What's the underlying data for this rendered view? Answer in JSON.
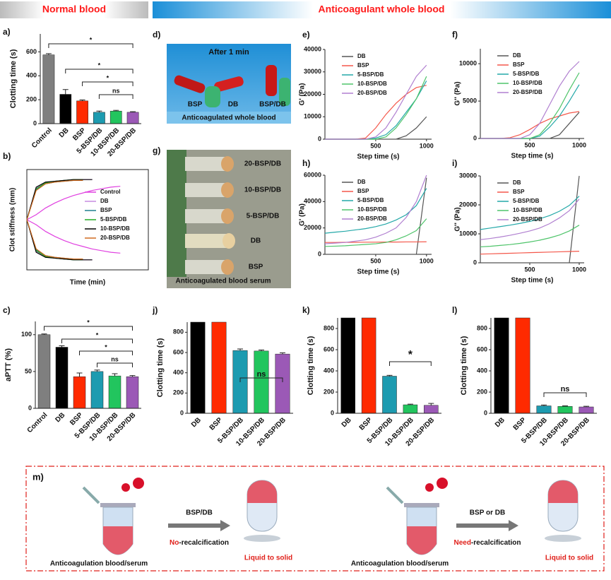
{
  "banner": {
    "left": "Normal blood",
    "right": "Anticoagulant whole blood"
  },
  "chart_data": [
    {
      "type": "bar",
      "label": "a)",
      "ylabel": "Clotting time (s)",
      "categories": [
        "Control",
        "DB",
        "BSP",
        "5-BSP/DB",
        "10-BSP/DB",
        "20-BSP/DB"
      ],
      "values": [
        575,
        245,
        190,
        95,
        105,
        95
      ],
      "errors": [
        10,
        40,
        8,
        10,
        6,
        5
      ],
      "colors": [
        "#7f7f7f",
        "#000000",
        "#ff2a00",
        "#1d9bb0",
        "#22c55e",
        "#9b59b6"
      ],
      "ylim": [
        0,
        750
      ],
      "yticks": [
        0,
        200,
        400,
        600
      ],
      "annotations": [
        "*",
        "*",
        "*",
        "ns"
      ]
    },
    {
      "type": "line",
      "label": "b)",
      "ylabel": "Clot stiffness (mm)",
      "xlabel": "Time (min)",
      "mirrored": true,
      "frame": true,
      "x": [
        0,
        1,
        2,
        3,
        4,
        5,
        6,
        7,
        8,
        9,
        10
      ],
      "xlim": [
        0,
        13
      ],
      "ylim": [
        -60,
        60
      ],
      "series": [
        {
          "name": "Control",
          "color": "#e040e0",
          "values": [
            0,
            6,
            14,
            20,
            25,
            29,
            32,
            35,
            37,
            39,
            40
          ]
        },
        {
          "name": "DB",
          "color": "#c58be0",
          "values": [
            0,
            38,
            44,
            46,
            47,
            47,
            48,
            48,
            null,
            null,
            null
          ]
        },
        {
          "name": "BSP",
          "color": "#1f7f8f",
          "values": [
            0,
            36,
            43,
            45,
            46,
            47,
            47,
            null,
            null,
            null,
            null
          ]
        },
        {
          "name": "5-BSP/DB",
          "color": "#22aa22",
          "values": [
            0,
            37,
            44,
            46,
            47,
            48,
            48,
            null,
            null,
            null,
            null
          ]
        },
        {
          "name": "10-BSP/DB",
          "color": "#000000",
          "values": [
            0,
            39,
            45,
            46,
            47,
            48,
            48,
            48,
            null,
            null,
            null
          ]
        },
        {
          "name": "20-BSP/DB",
          "color": "#d06a20",
          "values": [
            0,
            35,
            43,
            45,
            46,
            47,
            47,
            null,
            null,
            null,
            null
          ]
        }
      ]
    },
    {
      "type": "bar",
      "label": "c)",
      "ylabel": "aPTT (%)",
      "categories": [
        "Control",
        "DB",
        "BSP",
        "5-BSP/DB",
        "10-BSP/DB",
        "20-BSP/DB"
      ],
      "values": [
        100,
        83,
        43,
        50,
        44,
        43
      ],
      "errors": [
        1,
        2,
        5,
        2,
        3,
        1.5
      ],
      "colors": [
        "#7f7f7f",
        "#000000",
        "#ff2a00",
        "#1d9bb0",
        "#22c55e",
        "#9b59b6"
      ],
      "ylim": [
        0,
        118
      ],
      "yticks": [
        0,
        50,
        100
      ],
      "annotations": [
        "*",
        "*",
        "*",
        "ns"
      ]
    },
    {
      "type": "line",
      "label": "e)",
      "ylabel": "G' (Pa)",
      "xlabel": "Step time (s)",
      "x": [
        0,
        100,
        200,
        300,
        400,
        500,
        600,
        700,
        800,
        900,
        1000
      ],
      "xlim": [
        0,
        1050
      ],
      "xticks": [
        500,
        1000
      ],
      "ylim": [
        0,
        40000
      ],
      "yticks": [
        0,
        10000,
        20000,
        30000,
        40000
      ],
      "series": [
        {
          "name": "DB",
          "color": "#555555",
          "values": [
            0,
            0,
            0,
            0,
            0,
            0,
            0,
            0,
            1500,
            5000,
            10000
          ]
        },
        {
          "name": "BSP",
          "color": "#f4574a",
          "values": [
            0,
            0,
            0,
            0,
            500,
            5000,
            11000,
            16000,
            20000,
            23000,
            24000
          ]
        },
        {
          "name": "5-BSP/DB",
          "color": "#23a8a8",
          "values": [
            0,
            0,
            0,
            0,
            0,
            500,
            2000,
            6000,
            12000,
            18000,
            26000
          ]
        },
        {
          "name": "10-BSP/DB",
          "color": "#4ec46a",
          "values": [
            0,
            0,
            0,
            0,
            0,
            0,
            1000,
            5000,
            11000,
            18000,
            28000
          ]
        },
        {
          "name": "20-BSP/DB",
          "color": "#b07fd0",
          "values": [
            0,
            0,
            0,
            0,
            0,
            1000,
            5000,
            12000,
            20000,
            28000,
            33000
          ]
        }
      ]
    },
    {
      "type": "line",
      "label": "f)",
      "ylabel": "G'' (Pa)",
      "xlabel": "Step time (s)",
      "x": [
        0,
        100,
        200,
        300,
        400,
        500,
        600,
        700,
        800,
        900,
        1000
      ],
      "xlim": [
        0,
        1050
      ],
      "xticks": [
        500,
        1000
      ],
      "ylim": [
        0,
        12000
      ],
      "yticks": [
        0,
        5000,
        10000
      ],
      "series": [
        {
          "name": "DB",
          "color": "#555555",
          "values": [
            0,
            0,
            0,
            0,
            0,
            0,
            0,
            0,
            500,
            2000,
            3500
          ]
        },
        {
          "name": "BSP",
          "color": "#f4574a",
          "values": [
            0,
            0,
            0,
            100,
            500,
            1200,
            2000,
            2600,
            3000,
            3400,
            3600
          ]
        },
        {
          "name": "5-BSP/DB",
          "color": "#23a8a8",
          "values": [
            0,
            0,
            0,
            0,
            0,
            0,
            300,
            1500,
            3000,
            5000,
            7200
          ]
        },
        {
          "name": "10-BSP/DB",
          "color": "#4ec46a",
          "values": [
            0,
            0,
            0,
            0,
            0,
            0,
            500,
            2000,
            4000,
            6500,
            8800
          ]
        },
        {
          "name": "20-BSP/DB",
          "color": "#b07fd0",
          "values": [
            0,
            0,
            0,
            0,
            0,
            500,
            2000,
            4500,
            7000,
            9000,
            10300
          ]
        }
      ]
    },
    {
      "type": "line",
      "label": "h)",
      "ylabel": "G' (Pa)",
      "xlabel": "Step time (s)",
      "x": [
        0,
        100,
        200,
        300,
        400,
        500,
        600,
        700,
        800,
        900,
        1000
      ],
      "xlim": [
        0,
        1050
      ],
      "xticks": [
        500,
        1000
      ],
      "ylim": [
        0,
        60000
      ],
      "yticks": [
        0,
        20000,
        40000,
        60000
      ],
      "series": [
        {
          "name": "DB",
          "color": "#555555",
          "values": [
            0,
            0,
            0,
            0,
            0,
            0,
            0,
            0,
            0,
            0,
            58000
          ]
        },
        {
          "name": "BSP",
          "color": "#f4574a",
          "values": [
            9000,
            9000,
            9100,
            9100,
            9200,
            9200,
            9300,
            9300,
            9400,
            9400,
            9500
          ]
        },
        {
          "name": "5-BSP/DB",
          "color": "#23a8a8",
          "values": [
            16000,
            16800,
            17500,
            18500,
            19500,
            21000,
            23000,
            26000,
            30000,
            37000,
            50000
          ]
        },
        {
          "name": "10-BSP/DB",
          "color": "#4ec46a",
          "values": [
            6000,
            6200,
            6500,
            7000,
            7500,
            8000,
            9000,
            11000,
            14000,
            18000,
            27000
          ]
        },
        {
          "name": "20-BSP/DB",
          "color": "#b07fd0",
          "values": [
            8000,
            8500,
            9000,
            10000,
            11000,
            13000,
            16000,
            20000,
            28000,
            40000,
            60000
          ]
        }
      ]
    },
    {
      "type": "line",
      "label": "i)",
      "ylabel": "G'' (Pa)",
      "xlabel": "Step time (s)",
      "x": [
        0,
        100,
        200,
        300,
        400,
        500,
        600,
        700,
        800,
        900,
        1000
      ],
      "xlim": [
        0,
        1050
      ],
      "xticks": [
        500,
        1000
      ],
      "ylim": [
        0,
        30000
      ],
      "yticks": [
        0,
        10000,
        20000,
        30000
      ],
      "series": [
        {
          "name": "DB",
          "color": "#555555",
          "values": [
            0,
            0,
            0,
            0,
            0,
            0,
            0,
            0,
            0,
            0,
            30000
          ]
        },
        {
          "name": "BSP",
          "color": "#f4574a",
          "values": [
            3000,
            3100,
            3200,
            3300,
            3400,
            3500,
            3600,
            3700,
            3800,
            3900,
            4000
          ]
        },
        {
          "name": "5-BSP/DB",
          "color": "#23a8a8",
          "values": [
            11500,
            12000,
            12500,
            13000,
            13600,
            14300,
            15200,
            16300,
            17800,
            19800,
            23000
          ]
        },
        {
          "name": "10-BSP/DB",
          "color": "#4ec46a",
          "values": [
            5500,
            5700,
            6000,
            6300,
            6700,
            7200,
            7800,
            8600,
            9600,
            11000,
            13000
          ]
        },
        {
          "name": "20-BSP/DB",
          "color": "#b07fd0",
          "values": [
            8000,
            8400,
            8900,
            9500,
            10200,
            11000,
            12000,
            13500,
            15500,
            18000,
            22000
          ]
        }
      ]
    },
    {
      "type": "bar",
      "label": "j)",
      "ylabel": "Clotting time (s)",
      "categories": [
        "DB",
        "BSP",
        "5-BSP/DB",
        "10-BSP/DB",
        "20-BSP/DB"
      ],
      "values": [
        900,
        900,
        620,
        615,
        585
      ],
      "errors": [
        0,
        0,
        15,
        10,
        12
      ],
      "colors": [
        "#000000",
        "#ff2a00",
        "#1d9bb0",
        "#22c55e",
        "#9b59b6"
      ],
      "ylim": [
        0,
        900
      ],
      "yticks": [
        0,
        200,
        400,
        600,
        800
      ],
      "annotations": [
        "ns"
      ]
    },
    {
      "type": "bar",
      "label": "k)",
      "ylabel": "Clotting time (s)",
      "categories": [
        "DB",
        "BSP",
        "5-BSP/DB",
        "10-BSP/DB",
        "20-BSP/DB"
      ],
      "values": [
        900,
        900,
        350,
        80,
        75
      ],
      "errors": [
        0,
        0,
        8,
        6,
        18
      ],
      "colors": [
        "#000000",
        "#ff2a00",
        "#1d9bb0",
        "#22c55e",
        "#9b59b6"
      ],
      "ylim": [
        0,
        900
      ],
      "yticks": [
        0,
        200,
        400,
        600,
        800
      ],
      "annotations": [
        "*"
      ]
    },
    {
      "type": "bar",
      "label": "l)",
      "ylabel": "Clotting time (s)",
      "categories": [
        "DB",
        "BSP",
        "5-BSP/DB",
        "10-BSP/DB",
        "20-BSP/DB"
      ],
      "values": [
        900,
        900,
        70,
        65,
        60
      ],
      "errors": [
        0,
        0,
        8,
        5,
        6
      ],
      "colors": [
        "#000000",
        "#ff2a00",
        "#1d9bb0",
        "#22c55e",
        "#9b59b6"
      ],
      "ylim": [
        0,
        900
      ],
      "yticks": [
        0,
        200,
        400,
        600,
        800
      ],
      "annotations": [
        "ns"
      ]
    }
  ],
  "photos": [
    {
      "label": "d)",
      "title": "After 1 min",
      "tubes": [
        "BSP",
        "DB",
        "BSP/DB"
      ],
      "caption": "Anticoagulated whole blood"
    },
    {
      "label": "g)",
      "tubes": [
        "20-BSP/DB",
        "10-BSP/DB",
        "5-BSP/DB",
        "DB",
        "BSP"
      ],
      "caption": "Anticoagulated blood serum"
    }
  ],
  "scheme": {
    "label": "m)",
    "steps": [
      {
        "source": "Anticoagulation blood/serum",
        "agent": "BSP/DB",
        "condition_key": "No",
        "condition_rest": "-recalcification",
        "result": "Liquid to solid"
      },
      {
        "source": "Anticoagulation blood/serum",
        "agent": "BSP or DB",
        "condition_key": "Need",
        "condition_rest": "-recalcification",
        "result": "Liquid to solid"
      }
    ]
  }
}
